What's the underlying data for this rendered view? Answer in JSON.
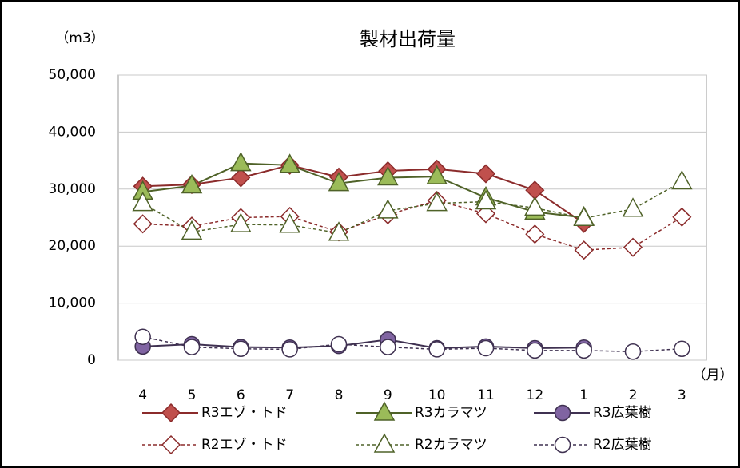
{
  "chart_data": {
    "type": "line",
    "title": "製材出荷量",
    "y_unit": "（m3）",
    "x_unit": "（月）",
    "categories": [
      "4",
      "5",
      "6",
      "7",
      "8",
      "9",
      "10",
      "11",
      "12",
      "1",
      "2",
      "3"
    ],
    "ylim": [
      0,
      50000
    ],
    "yticks": [
      0,
      {
        "value": 10000,
        "label": "10,000"
      },
      {
        "value": 20000,
        "label": "20,000"
      },
      {
        "value": 30000,
        "label": "30,000"
      },
      {
        "value": 40000,
        "label": "40,000"
      },
      {
        "value": 50000,
        "label": "50,000"
      }
    ],
    "grid": true,
    "series": [
      {
        "name": "R3エゾ・トド",
        "color": "#8b2b2b",
        "fill": "#c0504d",
        "marker": "diamond",
        "dashed": false,
        "values": [
          30500,
          30800,
          32000,
          34200,
          32100,
          33200,
          33500,
          32700,
          29800,
          24000,
          null,
          null
        ]
      },
      {
        "name": "R3カラマツ",
        "color": "#4f6228",
        "fill": "#9bbb59",
        "marker": "triangle",
        "dashed": false,
        "values": [
          29500,
          30600,
          34500,
          34200,
          31000,
          32000,
          32200,
          28500,
          26000,
          25000,
          null,
          null
        ]
      },
      {
        "name": "R3広葉樹",
        "color": "#3f3151",
        "fill": "#8064a2",
        "marker": "circle",
        "dashed": false,
        "values": [
          2400,
          2800,
          2300,
          2200,
          2500,
          3600,
          2100,
          2400,
          2100,
          2200,
          null,
          null
        ]
      },
      {
        "name": "R2エゾ・トド",
        "color": "#8b2b2b",
        "fill": "#ffffff",
        "marker": "diamond",
        "dashed": true,
        "values": [
          23900,
          23500,
          25000,
          25200,
          22500,
          25500,
          28000,
          25700,
          22100,
          19300,
          19800,
          25100
        ]
      },
      {
        "name": "R2カラマツ",
        "color": "#4f6228",
        "fill": "#ffffff",
        "marker": "triangle",
        "dashed": true,
        "values": [
          27500,
          22500,
          23800,
          23700,
          22300,
          26200,
          27500,
          27800,
          26700,
          24900,
          26500,
          31300
        ]
      },
      {
        "name": "R2広葉樹",
        "color": "#3f3151",
        "fill": "#ffffff",
        "marker": "circle",
        "dashed": true,
        "values": [
          4100,
          2300,
          2000,
          1900,
          2800,
          2300,
          1900,
          2100,
          1700,
          1700,
          1500,
          2000
        ]
      }
    ]
  }
}
